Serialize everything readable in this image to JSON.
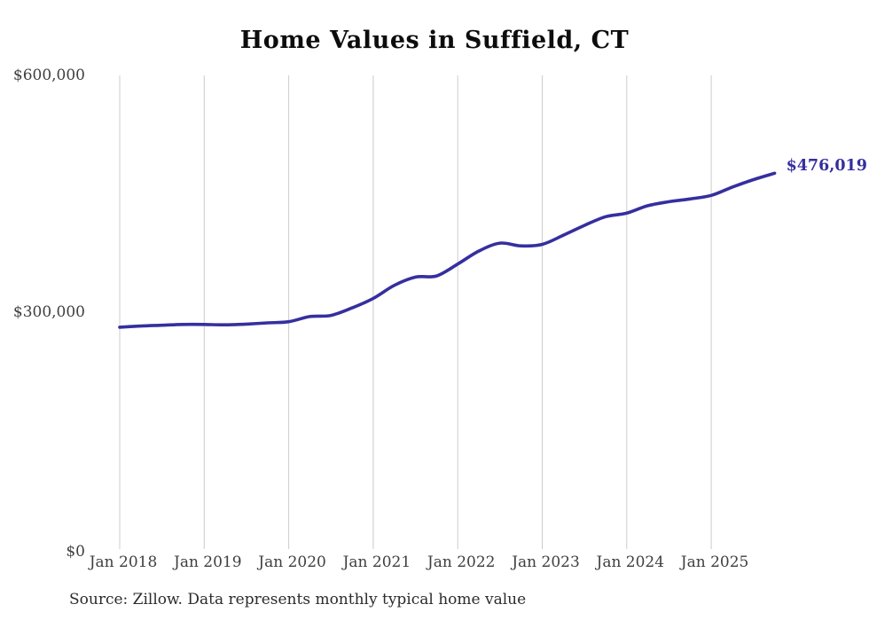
{
  "chart_data": {
    "type": "line",
    "title": "Home Values in Suffield, CT",
    "source": "Source: Zillow. Data represents monthly typical home value",
    "end_label": "$476,019",
    "end_value": 476019,
    "line_color": "#352f9f",
    "grid_color": "#cccccc",
    "grid": "vertical-only",
    "legend": "none",
    "ylim": [
      0,
      600000
    ],
    "y_ticks": [
      {
        "label": "$600,000",
        "value": 600000
      },
      {
        "label": "$300,000",
        "value": 300000
      },
      {
        "label": "$0",
        "value": 0
      }
    ],
    "x_ticks": [
      {
        "label": "Jan 2018",
        "date": "2018-01"
      },
      {
        "label": "Jan 2019",
        "date": "2019-01"
      },
      {
        "label": "Jan 2020",
        "date": "2020-01"
      },
      {
        "label": "Jan 2021",
        "date": "2021-01"
      },
      {
        "label": "Jan 2022",
        "date": "2022-01"
      },
      {
        "label": "Jan 2023",
        "date": "2023-01"
      },
      {
        "label": "Jan 2024",
        "date": "2024-01"
      },
      {
        "label": "Jan 2025",
        "date": "2025-01"
      }
    ],
    "series": [
      {
        "name": "Monthly typical home value",
        "points": [
          {
            "date": "2018-01",
            "value": 281000
          },
          {
            "date": "2018-04",
            "value": 282500
          },
          {
            "date": "2018-07",
            "value": 283500
          },
          {
            "date": "2018-10",
            "value": 284500
          },
          {
            "date": "2019-01",
            "value": 284500
          },
          {
            "date": "2019-04",
            "value": 284000
          },
          {
            "date": "2019-07",
            "value": 285000
          },
          {
            "date": "2019-10",
            "value": 286500
          },
          {
            "date": "2020-01",
            "value": 288000
          },
          {
            "date": "2020-04",
            "value": 294500
          },
          {
            "date": "2020-07",
            "value": 296000
          },
          {
            "date": "2020-10",
            "value": 305500
          },
          {
            "date": "2021-01",
            "value": 317500
          },
          {
            "date": "2021-04",
            "value": 334000
          },
          {
            "date": "2021-07",
            "value": 344500
          },
          {
            "date": "2021-10",
            "value": 346000
          },
          {
            "date": "2022-01",
            "value": 361000
          },
          {
            "date": "2022-04",
            "value": 377500
          },
          {
            "date": "2022-07",
            "value": 387500
          },
          {
            "date": "2022-10",
            "value": 384000
          },
          {
            "date": "2023-01",
            "value": 386000
          },
          {
            "date": "2023-04",
            "value": 397500
          },
          {
            "date": "2023-07",
            "value": 410000
          },
          {
            "date": "2023-10",
            "value": 421000
          },
          {
            "date": "2024-01",
            "value": 425500
          },
          {
            "date": "2024-04",
            "value": 435000
          },
          {
            "date": "2024-07",
            "value": 440000
          },
          {
            "date": "2024-10",
            "value": 443500
          },
          {
            "date": "2025-01",
            "value": 448000
          },
          {
            "date": "2025-04",
            "value": 458500
          },
          {
            "date": "2025-07",
            "value": 468000
          },
          {
            "date": "2025-10",
            "value": 476019
          }
        ]
      }
    ]
  }
}
